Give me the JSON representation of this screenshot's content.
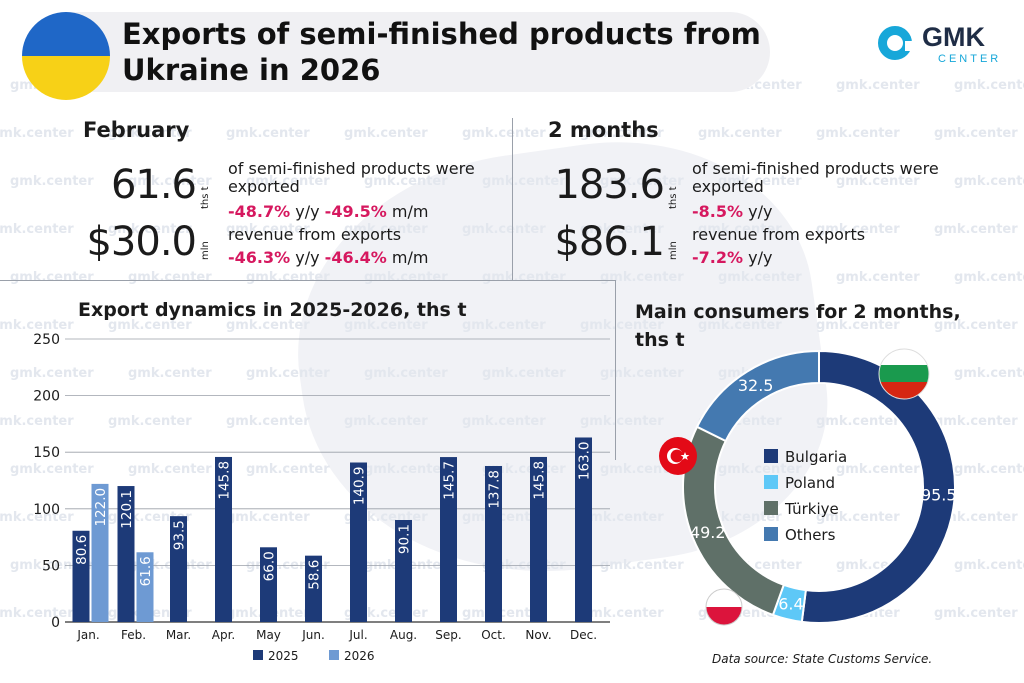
{
  "title": "Exports of semi-finished products from Ukraine in 2026",
  "logo": {
    "name": "GMK",
    "sub": "CENTER"
  },
  "watermark": "gmk.center",
  "february": {
    "period": "February",
    "volume": "61.6",
    "volume_unit": "ths t",
    "volume_desc": "of semi-finished products were exported",
    "volume_yy": "-48.7%",
    "volume_mm": "-49.5%",
    "revenue": "$30.0",
    "revenue_unit": "mln",
    "revenue_desc": "revenue from exports",
    "revenue_yy": "-46.3%",
    "revenue_mm": "-46.4%",
    "yy_label": "y/y",
    "mm_label": "m/m"
  },
  "two_months": {
    "period": "2 months",
    "volume": "183.6",
    "volume_unit": "ths t",
    "volume_desc": "of semi-finished products were exported",
    "volume_yy": "-8.5%",
    "revenue": "$86.1",
    "revenue_unit": "mln",
    "revenue_desc": "revenue from exports",
    "revenue_yy": "-7.2%",
    "yy_label": "y/y"
  },
  "chart_data": [
    {
      "type": "bar",
      "title": "Export dynamics in 2025-2026, ths t",
      "categories": [
        "Jan.",
        "Feb.",
        "Mar.",
        "Apr.",
        "May",
        "Jun.",
        "Jul.",
        "Aug.",
        "Sep.",
        "Oct.",
        "Nov.",
        "Dec."
      ],
      "series": [
        {
          "name": "2025",
          "color": "#1d3a78",
          "values": [
            80.6,
            120.1,
            93.5,
            145.8,
            66.0,
            58.6,
            140.9,
            90.1,
            145.7,
            137.8,
            145.8,
            163.0
          ]
        },
        {
          "name": "2026",
          "color": "#6e9ad3",
          "values": [
            122.0,
            61.6,
            null,
            null,
            null,
            null,
            null,
            null,
            null,
            null,
            null,
            null
          ]
        }
      ],
      "ylim": [
        0,
        250
      ],
      "yticks": [
        0,
        50,
        100,
        150,
        200,
        250
      ],
      "grid": true,
      "legend": "bottom"
    },
    {
      "type": "pie",
      "title": "Main consumers for 2 months, ths t",
      "labels": [
        "Bulgaria",
        "Poland",
        "Türkiye",
        "Others"
      ],
      "values": [
        95.5,
        6.4,
        49.2,
        32.5
      ],
      "colors": [
        "#1d3a78",
        "#5ec8f7",
        "#5f7068",
        "#4479b0"
      ],
      "legend": "center"
    }
  ],
  "source": "Data source: State Customs Service."
}
